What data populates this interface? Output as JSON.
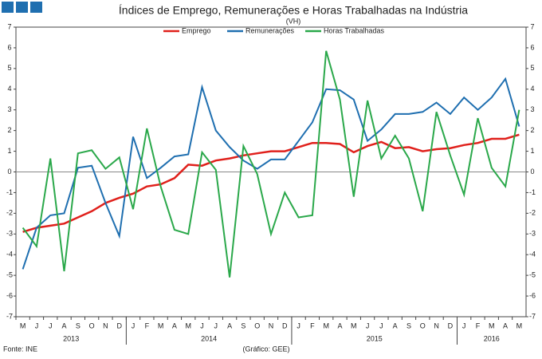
{
  "chart_data": {
    "type": "line",
    "title": "Índices de Emprego, Remunerações e Horas Trabalhadas na Indústria",
    "subtitle": "(VH)",
    "categories": [
      "M",
      "J",
      "J",
      "A",
      "S",
      "O",
      "N",
      "D",
      "J",
      "F",
      "M",
      "A",
      "M",
      "J",
      "J",
      "A",
      "S",
      "O",
      "N",
      "D",
      "J",
      "F",
      "M",
      "A",
      "M",
      "J",
      "J",
      "A",
      "S",
      "O",
      "N",
      "D",
      "J",
      "F",
      "M",
      "A",
      "M"
    ],
    "years": [
      "2013",
      "2014",
      "2015",
      "2016"
    ],
    "series": [
      {
        "name": "Emprego",
        "color": "#e0201b",
        "values": [
          -2.9,
          -2.7,
          -2.6,
          -2.5,
          -2.2,
          -1.9,
          -1.5,
          -1.25,
          -1.05,
          -0.7,
          -0.6,
          -0.3,
          0.35,
          0.3,
          0.55,
          0.65,
          0.8,
          0.9,
          1.0,
          1.0,
          1.2,
          1.4,
          1.4,
          1.35,
          0.95,
          1.25,
          1.45,
          1.15,
          1.2,
          1.0,
          1.1,
          1.15,
          1.3,
          1.4,
          1.6,
          1.6,
          1.8
        ]
      },
      {
        "name": "Remunerações",
        "color": "#1f6fb0",
        "values": [
          -4.7,
          -2.7,
          -2.1,
          -2.0,
          0.2,
          0.3,
          -1.5,
          -3.1,
          1.7,
          -0.3,
          0.2,
          0.75,
          0.85,
          4.1,
          2.0,
          1.2,
          0.55,
          0.15,
          0.6,
          0.6,
          1.5,
          2.4,
          4.0,
          3.95,
          3.5,
          1.5,
          2.05,
          2.8,
          2.8,
          2.9,
          3.35,
          2.8,
          3.6,
          3.0,
          3.6,
          4.5,
          2.2
        ]
      },
      {
        "name": "Horas Trabalhadas",
        "color": "#2aa84a",
        "values": [
          -2.7,
          -3.6,
          0.65,
          -4.8,
          0.9,
          1.05,
          0.15,
          0.7,
          -1.8,
          2.1,
          -0.7,
          -2.8,
          -3.0,
          0.95,
          0.1,
          -5.1,
          1.25,
          -0.1,
          -3.0,
          -1.0,
          -2.2,
          -2.1,
          5.85,
          3.5,
          -1.2,
          3.45,
          0.65,
          1.75,
          0.65,
          -1.9,
          2.9,
          0.8,
          -1.1,
          2.6,
          0.2,
          -0.7,
          3.0
        ]
      }
    ],
    "ylim": [
      -7,
      7
    ],
    "yticks": [
      -7,
      -6,
      -5,
      -4,
      -3,
      -2,
      -1,
      0,
      1,
      2,
      3,
      4,
      5,
      6,
      7
    ],
    "y2lim": [
      -7,
      7
    ],
    "y2ticks": [
      -7,
      -6,
      -5,
      -4,
      -3,
      -2,
      -1,
      0,
      1,
      2,
      3,
      4,
      5,
      6,
      7
    ],
    "source": "Fonte: INE",
    "credit": "(Gráfico: GEE)"
  }
}
